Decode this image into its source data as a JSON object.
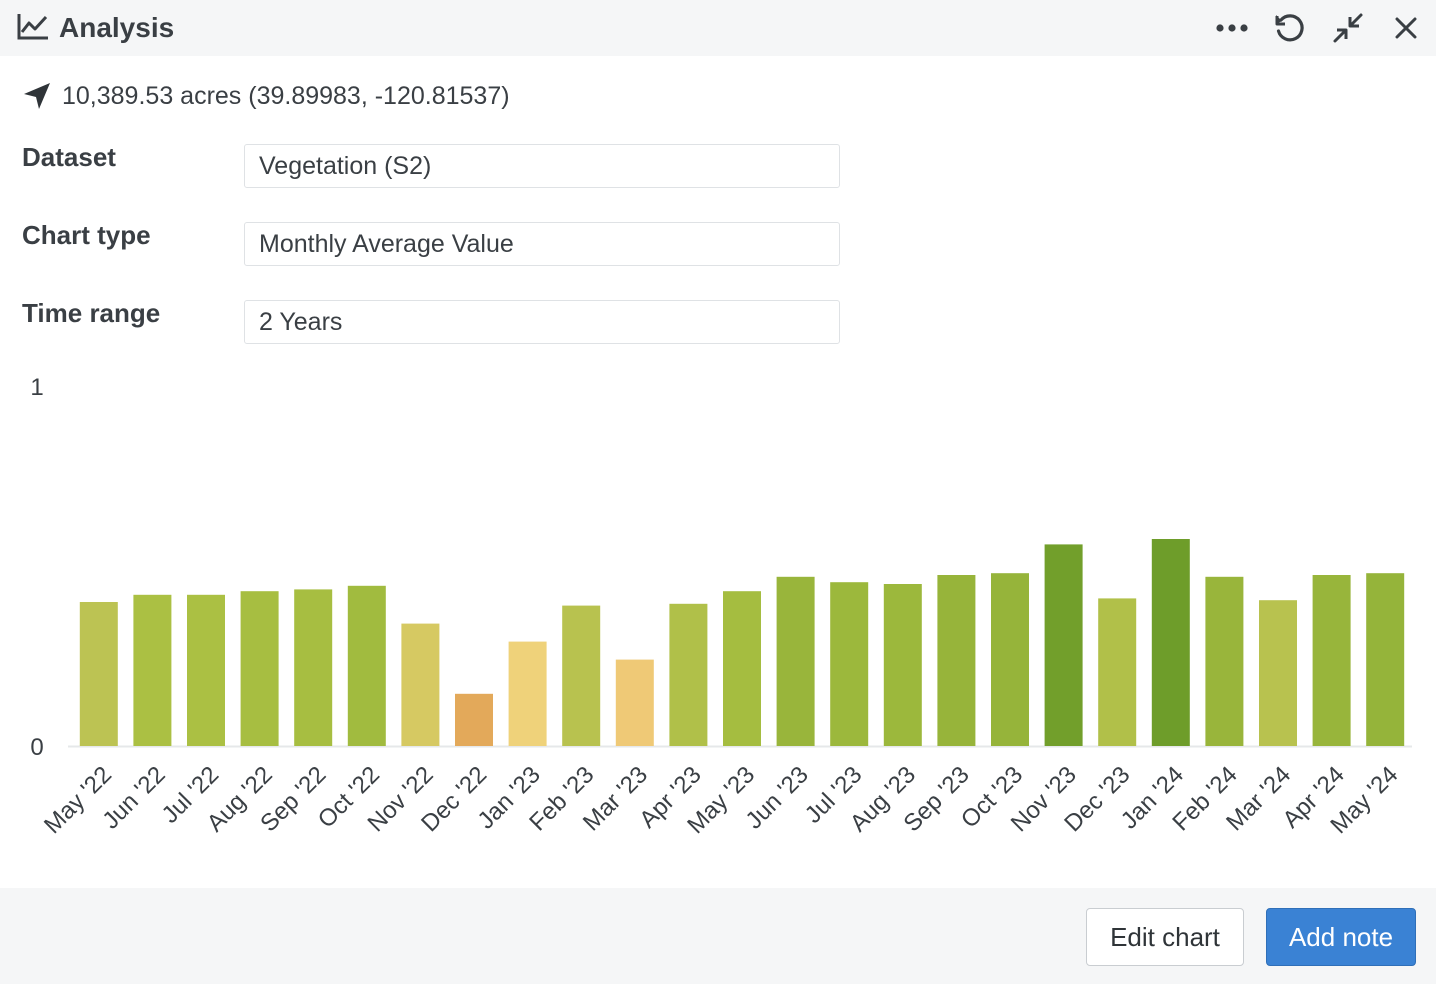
{
  "header": {
    "title": "Analysis",
    "title_icon": "line-chart-icon",
    "actions": [
      {
        "name": "more-options",
        "icon": "ellipsis-icon"
      },
      {
        "name": "refresh",
        "icon": "refresh-icon"
      },
      {
        "name": "minimize",
        "icon": "collapse-arrows-icon"
      },
      {
        "name": "close",
        "icon": "close-icon"
      }
    ]
  },
  "location": {
    "icon": "navigation-arrow-icon",
    "text": "10,389.53 acres (39.89983, -120.81537)"
  },
  "fields": {
    "dataset": {
      "label": "Dataset",
      "value": "Vegetation (S2)"
    },
    "chart_type": {
      "label": "Chart type",
      "value": "Monthly Average Value"
    },
    "time_range": {
      "label": "Time range",
      "value": "2 Years"
    }
  },
  "chart_data": {
    "type": "bar",
    "title": "",
    "xlabel": "",
    "ylabel": "",
    "ylim": [
      0,
      1
    ],
    "y_ticks": [
      "0",
      "1"
    ],
    "categories": [
      "May '22",
      "Jun '22",
      "Jul '22",
      "Aug '22",
      "Sep '22",
      "Oct '22",
      "Nov '22",
      "Dec '22",
      "Jan '23",
      "Feb '23",
      "Mar '23",
      "Apr '23",
      "May '23",
      "Jun '23",
      "Jul '23",
      "Aug '23",
      "Sep '23",
      "Oct '23",
      "Nov '23",
      "Dec '23",
      "Jan '24",
      "Feb '24",
      "Mar '24",
      "Apr '24",
      "May '24"
    ],
    "values": [
      0.4,
      0.42,
      0.42,
      0.43,
      0.435,
      0.445,
      0.34,
      0.145,
      0.29,
      0.39,
      0.24,
      0.395,
      0.43,
      0.47,
      0.455,
      0.45,
      0.475,
      0.48,
      0.56,
      0.41,
      0.575,
      0.47,
      0.405,
      0.475,
      0.48
    ],
    "colors": [
      "#bcc353",
      "#abc043",
      "#abc043",
      "#a7be41",
      "#a7be41",
      "#a1bb3f",
      "#d6c962",
      "#e3a95a",
      "#efd27a",
      "#b8c24f",
      "#efc976",
      "#b0c049",
      "#a5bd40",
      "#99b53b",
      "#9cb83c",
      "#9cb83c",
      "#97b43a",
      "#96b43a",
      "#729f2b",
      "#b1c049",
      "#6e9d2a",
      "#99b53b",
      "#b8c24f",
      "#98b53b",
      "#95b43a"
    ],
    "grid": false,
    "legend": "none"
  },
  "footer": {
    "edit_label": "Edit chart",
    "add_label": "Add note"
  }
}
